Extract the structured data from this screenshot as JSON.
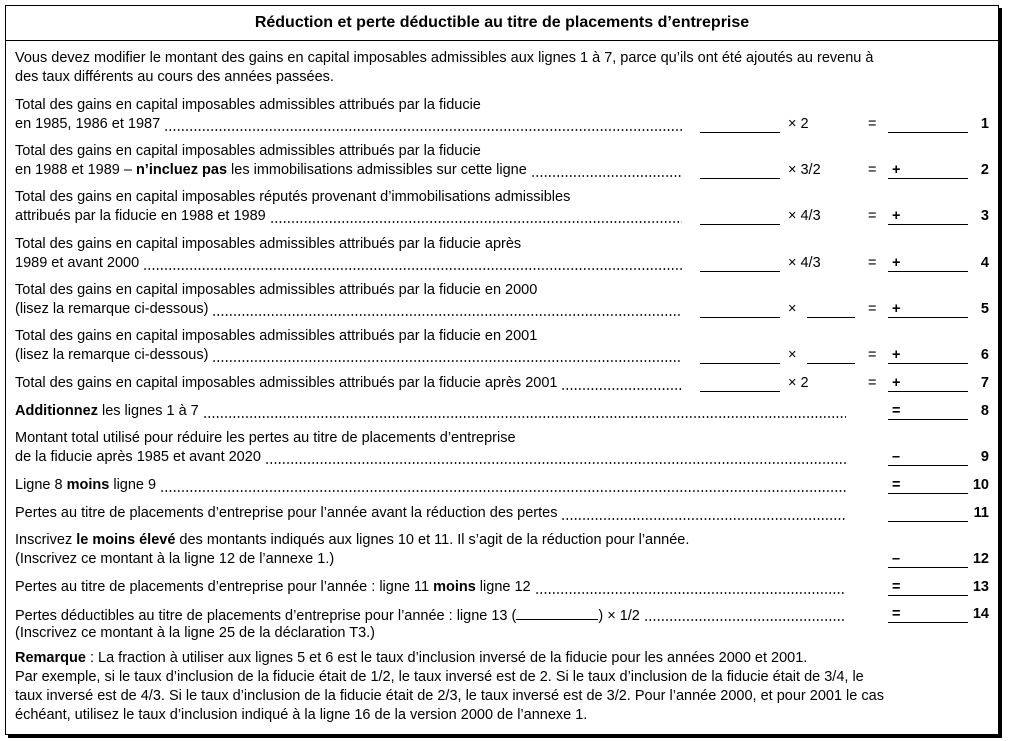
{
  "title": "Réduction et perte déductible au titre de placements d’entreprise",
  "intro": [
    "Vous devez modifier le montant des gains en capital imposables admissibles aux lignes 1 à 7, parce qu’ils ont été ajoutés au revenu à",
    "des taux différents au cours des années passées."
  ],
  "rows": [
    {
      "lines": [
        [
          {
            "text": "Total des gains en capital imposables admissibles attribués par la fiducie"
          }
        ],
        [
          {
            "text": "en 1985, 1986 et 1987"
          }
        ]
      ],
      "factor": "× 2",
      "equals": "=",
      "number": "1"
    },
    {
      "lines": [
        [
          {
            "text": "Total des gains en capital imposables admissibles attribués par la fiducie"
          }
        ],
        [
          {
            "text": "en 1988 et 1989 – "
          },
          {
            "text": "n’incluez pas",
            "bold": true
          },
          {
            "text": " les immobilisations admissibles sur cette ligne"
          }
        ]
      ],
      "factor": "× 3/2",
      "equals": "=",
      "sign": "+",
      "number": "2"
    },
    {
      "lines": [
        [
          {
            "text": "Total des gains en capital imposables réputés provenant d’immobilisations admissibles"
          }
        ],
        [
          {
            "text": "attribués par la fiducie en 1988 et 1989"
          }
        ]
      ],
      "factor": "× 4/3",
      "equals": "=",
      "sign": "+",
      "number": "3"
    },
    {
      "lines": [
        [
          {
            "text": "Total des gains en capital imposables admissibles attribués par la fiducie après"
          }
        ],
        [
          {
            "text": "1989 et avant 2000"
          }
        ]
      ],
      "factor": "× 4/3",
      "equals": "=",
      "sign": "+",
      "number": "4"
    },
    {
      "lines": [
        [
          {
            "text": "Total des gains en capital imposables admissibles attribués par la fiducie en 2000"
          }
        ],
        [
          {
            "text": "(lisez la remarque ci-dessous)"
          }
        ]
      ],
      "factor": "×",
      "factor_blank": true,
      "equals": "=",
      "sign": "+",
      "number": "5"
    },
    {
      "lines": [
        [
          {
            "text": "Total des gains en capital imposables admissibles attribués par la fiducie en 2001"
          }
        ],
        [
          {
            "text": "(lisez la remarque ci-dessous)"
          }
        ]
      ],
      "factor": "×",
      "factor_blank": true,
      "equals": "=",
      "sign": "+",
      "number": "6"
    },
    {
      "lines": [
        [
          {
            "text": "Total des gains en capital imposables admissibles attribués par la fiducie après 2001"
          }
        ]
      ],
      "factor": "× 2",
      "equals": "=",
      "sign": "+",
      "number": "7"
    },
    {
      "lines": [
        [
          {
            "text": "Additionnez",
            "bold": true
          },
          {
            "text": " les lignes 1 à 7"
          }
        ]
      ],
      "sign": "=",
      "number": "8"
    },
    {
      "lines": [
        [
          {
            "text": "Montant total utilisé pour réduire les pertes au titre de placements d’entreprise"
          }
        ],
        [
          {
            "text": "de la fiducie après 1985 et avant 2020"
          }
        ]
      ],
      "sign": "–",
      "number": "9"
    },
    {
      "lines": [
        [
          {
            "text": "Ligne 8 "
          },
          {
            "text": "moins",
            "bold": true
          },
          {
            "text": " ligne 9"
          }
        ]
      ],
      "sign": "=",
      "number": "10"
    },
    {
      "lines": [
        [
          {
            "text": "Pertes au titre de placements d’entreprise pour l’année avant la réduction des pertes"
          }
        ]
      ],
      "number": "11"
    },
    {
      "lines": [
        [
          {
            "text": "Inscrivez "
          },
          {
            "text": "le moins élevé",
            "bold": true
          },
          {
            "text": " des montants indiqués aux lignes 10 et 11. Il s’agit de la réduction pour l’année."
          }
        ],
        [
          {
            "text": "(Inscrivez ce montant à la ligne 12 de l’annexe 1.)"
          }
        ]
      ],
      "sign": "–",
      "number": "12"
    },
    {
      "lines": [
        [
          {
            "text": "Pertes au titre de placements d’entreprise pour l’année : ligne 11 "
          },
          {
            "text": "moins",
            "bold": true
          },
          {
            "text": " ligne 12"
          }
        ]
      ],
      "sign": "=",
      "number": "13"
    },
    {
      "lines": [
        [
          {
            "text": "Pertes déductibles au titre de placements d’entreprise pour l’année : ligne 13 ("
          },
          {
            "text": "__________"
          },
          {
            "text": ") × 1/2"
          }
        ],
        [
          {
            "text": "(Inscrivez ce montant à la ligne 25 de la déclaration T3.)"
          }
        ]
      ],
      "sign": "=",
      "number": "14"
    }
  ],
  "remark": [
    [
      {
        "text": "Remarque",
        "bold": true
      },
      {
        "text": " : La fraction à utiliser aux lignes 5 et 6 est le taux d’inclusion inversé de la fiducie pour les années 2000 et 2001."
      }
    ],
    [
      {
        "text": "Par exemple, si le taux d’inclusion de la fiducie était de 1/2, le taux inversé est de 2. Si le taux d’inclusion de la fiducie était de 3/4, le"
      }
    ],
    [
      {
        "text": "taux inversé est de 4/3. Si le taux d’inclusion de la fiducie était de 2/3, le taux inversé est de 3/2. Pour l’année 2000, et pour 2001 le cas"
      }
    ],
    [
      {
        "text": "échéant, utilisez le taux d’inclusion indiqué à la ligne 16 de la version 2000 de l’annexe 1."
      }
    ]
  ]
}
